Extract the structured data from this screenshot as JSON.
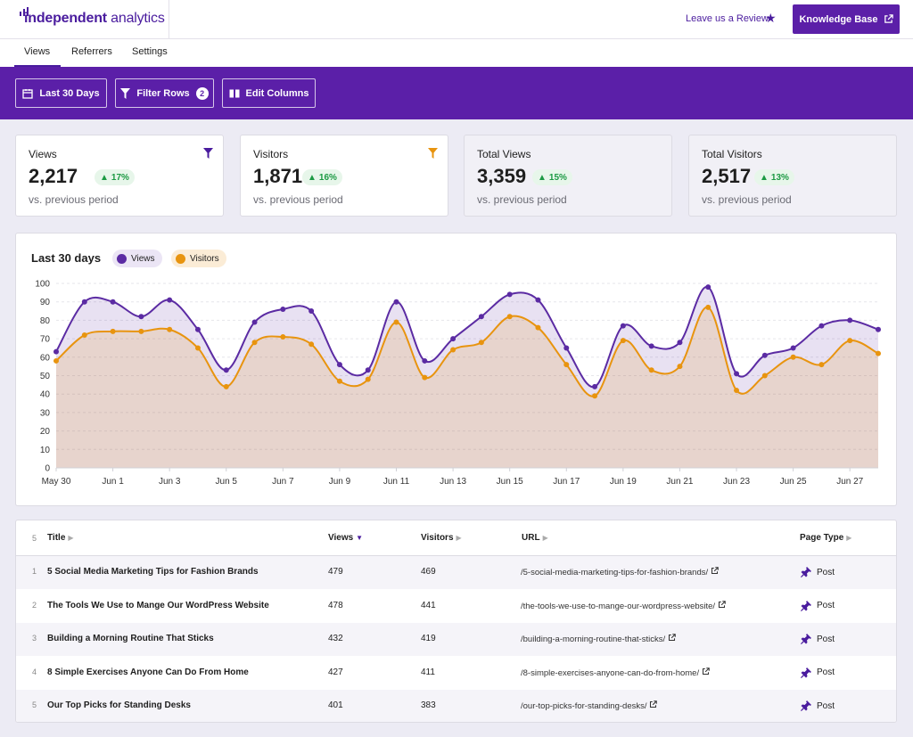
{
  "brand": {
    "name_bold": "independent",
    "name_rest": " analytics"
  },
  "header": {
    "review_label": "Leave us a Review",
    "kb_label": "Knowledge Base"
  },
  "tabs": [
    {
      "label": "Views"
    },
    {
      "label": "Referrers"
    },
    {
      "label": "Settings"
    }
  ],
  "toolbar": {
    "date_label": "Last 30 Days",
    "filter_label": "Filter Rows",
    "filter_count": "2",
    "columns_label": "Edit Columns"
  },
  "stats": [
    {
      "label": "Views",
      "value": "2,217",
      "change": "17%",
      "sub": "vs. previous period"
    },
    {
      "label": "Visitors",
      "value": "1,871",
      "change": "16%",
      "sub": "vs. previous period"
    },
    {
      "label": "Total Views",
      "value": "3,359",
      "change": "15%",
      "sub": "vs. previous period"
    },
    {
      "label": "Total Visitors",
      "value": "2,517",
      "change": "13%",
      "sub": "vs. previous period"
    }
  ],
  "colors": {
    "views": "#5b2ba3",
    "visitors": "#e8940f",
    "accent": "#5b1fa8"
  },
  "chart_data": {
    "type": "area",
    "title": "Last 30 days",
    "ylim": [
      0,
      100
    ],
    "yticks": [
      0,
      10,
      20,
      30,
      40,
      50,
      60,
      70,
      80,
      90,
      100
    ],
    "x": [
      "May 30",
      "May 31",
      "Jun 1",
      "Jun 2",
      "Jun 3",
      "Jun 4",
      "Jun 5",
      "Jun 6",
      "Jun 7",
      "Jun 8",
      "Jun 9",
      "Jun 10",
      "Jun 11",
      "Jun 12",
      "Jun 13",
      "Jun 14",
      "Jun 15",
      "Jun 16",
      "Jun 17",
      "Jun 18",
      "Jun 19",
      "Jun 20",
      "Jun 21",
      "Jun 22",
      "Jun 23",
      "Jun 24",
      "Jun 25",
      "Jun 26",
      "Jun 27",
      "Jun 28"
    ],
    "xtick_labels": [
      "May 30",
      "Jun 1",
      "Jun 3",
      "Jun 5",
      "Jun 7",
      "Jun 9",
      "Jun 11",
      "Jun 13",
      "Jun 15",
      "Jun 17",
      "Jun 19",
      "Jun 21",
      "Jun 23",
      "Jun 25",
      "Jun 27"
    ],
    "series": [
      {
        "name": "Views",
        "values": [
          63,
          90,
          90,
          82,
          91,
          75,
          53,
          79,
          86,
          85,
          56,
          53,
          90,
          58,
          70,
          82,
          94,
          91,
          65,
          44,
          77,
          66,
          68,
          98,
          51,
          61,
          65,
          77,
          80,
          75
        ]
      },
      {
        "name": "Visitors",
        "values": [
          58,
          72,
          74,
          74,
          75,
          65,
          44,
          68,
          71,
          67,
          47,
          48,
          79,
          49,
          64,
          68,
          82,
          76,
          56,
          39,
          69,
          53,
          55,
          87,
          42,
          50,
          60,
          56,
          69,
          62
        ]
      }
    ],
    "grid": true,
    "legend": "top-left"
  },
  "table": {
    "row_count": "5",
    "columns": {
      "title": "Title",
      "views": "Views",
      "visitors": "Visitors",
      "url": "URL",
      "page_type": "Page Type"
    },
    "rows": [
      {
        "idx": "1",
        "title": "5 Social Media Marketing Tips for Fashion Brands",
        "views": "479",
        "visitors": "469",
        "url": "/5-social-media-marketing-tips-for-fashion-brands/",
        "type": "Post"
      },
      {
        "idx": "2",
        "title": "The Tools We Use to Mange Our WordPress Website",
        "views": "478",
        "visitors": "441",
        "url": "/the-tools-we-use-to-mange-our-wordpress-website/",
        "type": "Post"
      },
      {
        "idx": "3",
        "title": "Building a Morning Routine That Sticks",
        "views": "432",
        "visitors": "419",
        "url": "/building-a-morning-routine-that-sticks/",
        "type": "Post"
      },
      {
        "idx": "4",
        "title": "8 Simple Exercises Anyone Can Do From Home",
        "views": "427",
        "visitors": "411",
        "url": "/8-simple-exercises-anyone-can-do-from-home/",
        "type": "Post"
      },
      {
        "idx": "5",
        "title": "Our Top Picks for Standing Desks",
        "views": "401",
        "visitors": "383",
        "url": "/our-top-picks-for-standing-desks/",
        "type": "Post"
      }
    ]
  }
}
